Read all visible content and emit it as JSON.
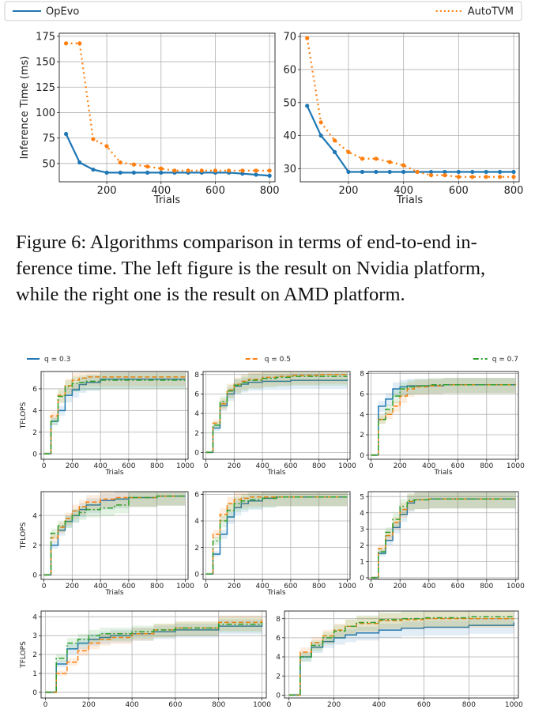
{
  "figure6": {
    "legend": [
      {
        "name": "OpEvo",
        "color": "#1f77b4",
        "style": "solid"
      },
      {
        "name": "AutoTVM",
        "color": "#ff7f0e",
        "style": "dotted"
      }
    ],
    "caption": [
      "Figure 6: Algorithms comparison in terms of end-to-end in-",
      "ference time. The left figure is the result on Nvidia platform,",
      "while the right one is the result on AMD platform."
    ]
  },
  "figure7": {
    "legend": [
      {
        "name": "q = 0.3",
        "color": "#1f77b4",
        "style": "solid"
      },
      {
        "name": "q = 0.5",
        "color": "#ff7f0e",
        "style": "dashed"
      },
      {
        "name": "q = 0.7",
        "color": "#2ca02c",
        "style": "dashdot"
      }
    ]
  },
  "chart_data": [
    {
      "id": "nvidia",
      "type": "line",
      "xlabel": "Trials",
      "ylabel": "Inference Time (ms)",
      "xlim": [
        25,
        820
      ],
      "ylim": [
        32,
        178
      ],
      "xticks": [
        200,
        400,
        600,
        800
      ],
      "yticks": [
        50,
        75,
        100,
        125,
        150,
        175
      ],
      "grid": true,
      "series": [
        {
          "name": "OpEvo",
          "x": [
            50,
            100,
            150,
            200,
            250,
            300,
            350,
            400,
            450,
            500,
            550,
            600,
            650,
            700,
            750,
            800
          ],
          "y": [
            79,
            51,
            44,
            41,
            41,
            41,
            41,
            41,
            41,
            41,
            41,
            41,
            41,
            40,
            39,
            38
          ]
        },
        {
          "name": "AutoTVM",
          "x": [
            50,
            100,
            150,
            200,
            250,
            300,
            350,
            400,
            450,
            500,
            550,
            600,
            650,
            700,
            750,
            800
          ],
          "y": [
            168,
            168,
            74,
            67,
            51,
            49,
            47,
            45,
            43,
            43,
            43,
            43,
            43,
            43,
            43,
            43
          ]
        }
      ]
    },
    {
      "id": "amd",
      "type": "line",
      "xlabel": "Trials",
      "ylabel": "",
      "xlim": [
        25,
        820
      ],
      "ylim": [
        26,
        71
      ],
      "xticks": [
        200,
        400,
        600,
        800
      ],
      "yticks": [
        30,
        40,
        50,
        60,
        70
      ],
      "grid": true,
      "series": [
        {
          "name": "OpEvo",
          "x": [
            50,
            100,
            150,
            200,
            250,
            300,
            350,
            400,
            450,
            500,
            550,
            600,
            650,
            700,
            750,
            800
          ],
          "y": [
            49,
            40,
            35,
            29,
            29,
            29,
            29,
            29,
            29,
            29,
            29,
            29,
            29,
            29,
            29,
            29
          ]
        },
        {
          "name": "AutoTVM",
          "x": [
            50,
            100,
            150,
            200,
            250,
            300,
            350,
            400,
            450,
            500,
            550,
            600,
            650,
            700,
            750,
            800
          ],
          "y": [
            69.5,
            44,
            38.5,
            35,
            33,
            33,
            32,
            31,
            29,
            28,
            28,
            27.5,
            27.5,
            27.5,
            27.5,
            27.5
          ]
        }
      ]
    },
    {
      "id": "r1c1",
      "type": "line",
      "xlabel": "Trials",
      "ylabel": "TFLOPS",
      "xlim": [
        -20,
        1020
      ],
      "ylim": [
        -0.5,
        7.6
      ],
      "xticks": [
        0,
        200,
        400,
        600,
        800,
        1000
      ],
      "yticks": [
        0,
        2,
        4,
        6
      ],
      "grid": true,
      "series": [
        {
          "name": "q = 0.3",
          "x": [
            0,
            50,
            100,
            150,
            200,
            250,
            300,
            400,
            500,
            600,
            800,
            1000
          ],
          "y": [
            0,
            3,
            4,
            5.4,
            5.9,
            6.4,
            6.6,
            6.9,
            6.9,
            6.9,
            6.9,
            6.9
          ]
        },
        {
          "name": "q = 0.5",
          "x": [
            0,
            50,
            100,
            150,
            200,
            250,
            300,
            400,
            500,
            600,
            800,
            1000
          ],
          "y": [
            0,
            3.5,
            5.4,
            6.3,
            6.8,
            7,
            7.1,
            7.1,
            7.1,
            7.1,
            7.1,
            7.1
          ]
        },
        {
          "name": "q = 0.7",
          "x": [
            0,
            50,
            100,
            150,
            200,
            250,
            300,
            400,
            500,
            600,
            800,
            1000
          ],
          "y": [
            0,
            3,
            5.3,
            6.2,
            6.5,
            6.6,
            6.7,
            6.8,
            6.8,
            6.8,
            6.8,
            6.8
          ]
        }
      ]
    },
    {
      "id": "r1c2",
      "type": "line",
      "xlabel": "Trials",
      "ylabel": "",
      "xlim": [
        -20,
        1020
      ],
      "ylim": [
        -0.7,
        8.3
      ],
      "xticks": [
        0,
        200,
        400,
        600,
        800,
        1000
      ],
      "yticks": [
        0,
        2,
        4,
        6,
        8
      ],
      "grid": true,
      "series": [
        {
          "name": "q = 0.3",
          "x": [
            0,
            50,
            100,
            150,
            200,
            250,
            300,
            400,
            500,
            600,
            800,
            1000
          ],
          "y": [
            0,
            2.5,
            4.8,
            6,
            6.8,
            7,
            7.2,
            7.3,
            7.3,
            7.4,
            7.4,
            7.5
          ]
        },
        {
          "name": "q = 0.5",
          "x": [
            0,
            50,
            100,
            150,
            200,
            250,
            300,
            400,
            500,
            600,
            800,
            1000
          ],
          "y": [
            0,
            3,
            5,
            6.4,
            7,
            7.3,
            7.5,
            7.7,
            7.8,
            7.9,
            8,
            8
          ]
        },
        {
          "name": "q = 0.7",
          "x": [
            0,
            50,
            100,
            150,
            200,
            250,
            300,
            400,
            500,
            600,
            800,
            1000
          ],
          "y": [
            0,
            2.8,
            5.2,
            6.3,
            6.9,
            7.2,
            7.4,
            7.6,
            7.7,
            7.8,
            7.8,
            7.8
          ]
        }
      ]
    },
    {
      "id": "r1c3",
      "type": "line",
      "xlabel": "Trials",
      "ylabel": "",
      "xlim": [
        -20,
        1020
      ],
      "ylim": [
        -0.4,
        8.2
      ],
      "xticks": [
        0,
        200,
        400,
        600,
        800,
        1000
      ],
      "yticks": [
        0,
        2,
        4,
        6,
        8
      ],
      "grid": true,
      "series": [
        {
          "name": "q = 0.3",
          "x": [
            0,
            50,
            100,
            150,
            200,
            250,
            300,
            400,
            500,
            600,
            800,
            1000
          ],
          "y": [
            0,
            4.8,
            5.5,
            6.5,
            6.7,
            6.8,
            6.8,
            6.8,
            6.9,
            6.9,
            6.9,
            6.9
          ]
        },
        {
          "name": "q = 0.5",
          "x": [
            0,
            50,
            100,
            150,
            200,
            250,
            300,
            400,
            500,
            600,
            800,
            1000
          ],
          "y": [
            0,
            3.5,
            4,
            4.8,
            5.8,
            6.5,
            6.7,
            6.8,
            6.9,
            6.9,
            6.9,
            7
          ]
        },
        {
          "name": "q = 0.7",
          "x": [
            0,
            50,
            100,
            150,
            200,
            250,
            300,
            400,
            500,
            600,
            800,
            1000
          ],
          "y": [
            0,
            3.5,
            4.5,
            5.8,
            6.5,
            6.7,
            6.8,
            6.9,
            6.9,
            6.9,
            6.9,
            6.9
          ]
        }
      ]
    },
    {
      "id": "r2c1",
      "type": "line",
      "xlabel": "Trials",
      "ylabel": "TFLOPS",
      "xlim": [
        -20,
        1020
      ],
      "ylim": [
        -0.3,
        5.6
      ],
      "xticks": [
        0,
        200,
        400,
        600,
        800,
        1000
      ],
      "yticks": [
        0,
        2,
        4
      ],
      "grid": true,
      "series": [
        {
          "name": "q = 0.3",
          "x": [
            0,
            50,
            100,
            150,
            200,
            250,
            300,
            400,
            500,
            600,
            800,
            1000
          ],
          "y": [
            0,
            2,
            3,
            3.6,
            4,
            4.4,
            4.7,
            5,
            5.1,
            5.2,
            5.3,
            5.3
          ]
        },
        {
          "name": "q = 0.5",
          "x": [
            0,
            50,
            100,
            150,
            200,
            250,
            300,
            400,
            500,
            600,
            800,
            1000
          ],
          "y": [
            0,
            2.5,
            3.2,
            3.8,
            4.3,
            4.6,
            4.9,
            5.1,
            5.2,
            5.2,
            5.3,
            5.3
          ]
        },
        {
          "name": "q = 0.7",
          "x": [
            0,
            50,
            100,
            150,
            200,
            250,
            300,
            400,
            500,
            600,
            800,
            1000
          ],
          "y": [
            0,
            2.8,
            3.3,
            3.6,
            4,
            4.2,
            4.4,
            4.5,
            4.7,
            5.2,
            5.3,
            5.3
          ]
        }
      ]
    },
    {
      "id": "r2c2",
      "type": "line",
      "xlabel": "Trials",
      "ylabel": "",
      "xlim": [
        -20,
        1020
      ],
      "ylim": [
        -0.4,
        6.2
      ],
      "xticks": [
        0,
        200,
        400,
        600,
        800,
        1000
      ],
      "yticks": [
        0,
        2,
        4,
        6
      ],
      "grid": true,
      "series": [
        {
          "name": "q = 0.3",
          "x": [
            0,
            50,
            100,
            150,
            200,
            250,
            300,
            400,
            500,
            600,
            800,
            1000
          ],
          "y": [
            0,
            1.5,
            3,
            4.3,
            5,
            5.3,
            5.5,
            5.7,
            5.8,
            5.8,
            5.8,
            5.8
          ]
        },
        {
          "name": "q = 0.5",
          "x": [
            0,
            50,
            100,
            150,
            200,
            250,
            300,
            400,
            500,
            600,
            800,
            1000
          ],
          "y": [
            0,
            3,
            4.5,
            5.3,
            5.6,
            5.7,
            5.8,
            5.8,
            5.8,
            5.8,
            5.8,
            5.8
          ]
        },
        {
          "name": "q = 0.7",
          "x": [
            0,
            50,
            100,
            150,
            200,
            250,
            300,
            400,
            500,
            600,
            800,
            1000
          ],
          "y": [
            0,
            2.5,
            4,
            4.8,
            5.3,
            5.5,
            5.6,
            5.7,
            5.8,
            5.8,
            5.8,
            5.8
          ]
        }
      ]
    },
    {
      "id": "r2c3",
      "type": "line",
      "xlabel": "",
      "ylabel": "",
      "xlim": [
        -20,
        1020
      ],
      "ylim": [
        -0.1,
        5.3
      ],
      "xticks": [
        0,
        200,
        400,
        600,
        800,
        1000
      ],
      "yticks": [
        0,
        1,
        2,
        3,
        4,
        5
      ],
      "grid": true,
      "series": [
        {
          "name": "q = 0.3",
          "x": [
            0,
            50,
            100,
            150,
            200,
            250,
            300,
            400,
            500,
            600,
            800,
            1000
          ],
          "y": [
            0,
            1.5,
            2.3,
            3.1,
            3.9,
            4.6,
            4.8,
            4.85,
            4.85,
            4.85,
            4.85,
            4.85
          ]
        },
        {
          "name": "q = 0.5",
          "x": [
            0,
            50,
            100,
            150,
            200,
            250,
            300,
            400,
            500,
            600,
            800,
            1000
          ],
          "y": [
            0,
            1.8,
            2.6,
            3.4,
            4.2,
            4.7,
            4.8,
            4.85,
            4.85,
            4.85,
            4.85,
            4.85
          ]
        },
        {
          "name": "q = 0.7",
          "x": [
            0,
            50,
            100,
            150,
            200,
            250,
            300,
            400,
            500,
            600,
            800,
            1000
          ],
          "y": [
            0,
            1.6,
            2.8,
            3.6,
            4.4,
            4.75,
            4.8,
            4.85,
            4.85,
            4.85,
            4.85,
            4.85
          ]
        }
      ]
    },
    {
      "id": "r3c1",
      "type": "line",
      "xlabel": "",
      "ylabel": "TFLOPS",
      "xlim": [
        -20,
        1020
      ],
      "ylim": [
        -0.3,
        4.3
      ],
      "xticks": [
        0,
        200,
        400,
        600,
        800,
        1000
      ],
      "yticks": [
        0,
        1,
        2,
        3,
        4
      ],
      "grid": true,
      "series": [
        {
          "name": "q = 0.3",
          "x": [
            0,
            50,
            100,
            150,
            200,
            250,
            300,
            400,
            500,
            600,
            800,
            1000
          ],
          "y": [
            0,
            1.5,
            2.3,
            2.6,
            2.8,
            2.9,
            3,
            3.1,
            3.2,
            3.3,
            3.5,
            3.6
          ]
        },
        {
          "name": "q = 0.5",
          "x": [
            0,
            50,
            100,
            150,
            200,
            250,
            300,
            400,
            500,
            600,
            800,
            1000
          ],
          "y": [
            0,
            1,
            1.6,
            2.2,
            2.6,
            2.8,
            2.9,
            3.1,
            3.3,
            3.4,
            3.7,
            3.9
          ]
        },
        {
          "name": "q = 0.7",
          "x": [
            0,
            50,
            100,
            150,
            200,
            250,
            300,
            400,
            500,
            600,
            800,
            1000
          ],
          "y": [
            0,
            1.8,
            2.6,
            2.8,
            3,
            3.1,
            3.1,
            3.2,
            3.3,
            3.4,
            3.6,
            3.7
          ]
        }
      ]
    },
    {
      "id": "r3c2",
      "type": "line",
      "xlabel": "",
      "ylabel": "",
      "xlim": [
        -20,
        1020
      ],
      "ylim": [
        -0.3,
        8.8
      ],
      "xticks": [
        0,
        200,
        400,
        600,
        800,
        1000
      ],
      "yticks": [
        0,
        2,
        4,
        6,
        8
      ],
      "grid": true,
      "series": [
        {
          "name": "q = 0.3",
          "x": [
            0,
            50,
            100,
            150,
            200,
            250,
            300,
            400,
            500,
            600,
            800,
            1000
          ],
          "y": [
            0,
            4,
            5,
            5.6,
            6,
            6.3,
            6.5,
            6.8,
            7,
            7.1,
            7.3,
            7.6
          ]
        },
        {
          "name": "q = 0.5",
          "x": [
            0,
            50,
            100,
            150,
            200,
            250,
            300,
            400,
            500,
            600,
            800,
            1000
          ],
          "y": [
            0,
            4.5,
            5.5,
            6.2,
            6.8,
            7.2,
            7.5,
            7.8,
            7.9,
            8,
            8,
            8
          ]
        },
        {
          "name": "q = 0.7",
          "x": [
            0,
            50,
            100,
            150,
            200,
            250,
            300,
            400,
            500,
            600,
            800,
            1000
          ],
          "y": [
            0,
            4,
            5.2,
            6,
            6.7,
            7.2,
            7.6,
            7.9,
            8,
            8.1,
            8.2,
            8.3
          ]
        }
      ]
    }
  ]
}
